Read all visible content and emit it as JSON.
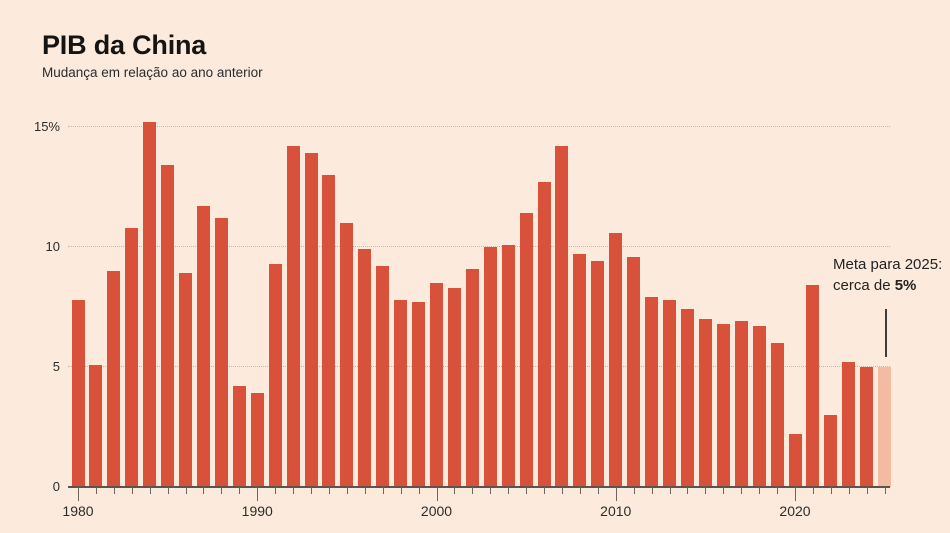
{
  "annotation": {
    "line1": "Meta para 2025:",
    "line2_normal": "cerca de ",
    "line2_bold": "5%"
  },
  "colors": {
    "background": "#fcebdc",
    "bar": "#d8513b",
    "bar_target": "#f3bba1",
    "gridline": "#c8b8a6",
    "axis": "#5a544b",
    "tick": "#6b655a",
    "title_text": "#141414",
    "body_text": "#2b2b2b",
    "pointer_line": "#3c3c3c"
  },
  "chart_data": {
    "type": "bar",
    "title": "PIB da China",
    "subtitle": "Mudança em relação ao ano anterior",
    "grid": "horizontal-dotted",
    "ylim": [
      0,
      15.5
    ],
    "yticks": [
      {
        "value": 0,
        "label": "0"
      },
      {
        "value": 5,
        "label": "5"
      },
      {
        "value": 10,
        "label": "10"
      },
      {
        "value": 15,
        "label": "15%"
      }
    ],
    "xticks_labeled": [
      1980,
      1990,
      2000,
      2010,
      2020
    ],
    "years": [
      1980,
      1981,
      1982,
      1983,
      1984,
      1985,
      1986,
      1987,
      1988,
      1989,
      1990,
      1991,
      1992,
      1993,
      1994,
      1995,
      1996,
      1997,
      1998,
      1999,
      2000,
      2001,
      2002,
      2003,
      2004,
      2005,
      2006,
      2007,
      2008,
      2009,
      2010,
      2011,
      2012,
      2013,
      2014,
      2015,
      2016,
      2017,
      2018,
      2019,
      2020,
      2021,
      2022,
      2023,
      2024,
      2025
    ],
    "values": [
      7.8,
      5.1,
      9.0,
      10.8,
      15.2,
      13.4,
      8.9,
      11.7,
      11.2,
      4.2,
      3.9,
      9.3,
      14.2,
      13.9,
      13.0,
      11.0,
      9.9,
      9.2,
      7.8,
      7.7,
      8.5,
      8.3,
      9.1,
      10.0,
      10.1,
      11.4,
      12.7,
      14.2,
      9.7,
      9.4,
      10.6,
      9.6,
      7.9,
      7.8,
      7.4,
      7.0,
      6.8,
      6.9,
      6.7,
      6.0,
      2.2,
      8.4,
      3.0,
      5.2,
      5.0,
      5.0
    ],
    "target": {
      "year": 2025,
      "value": 5.0,
      "annotation": "Meta para 2025: cerca de 5%"
    }
  }
}
